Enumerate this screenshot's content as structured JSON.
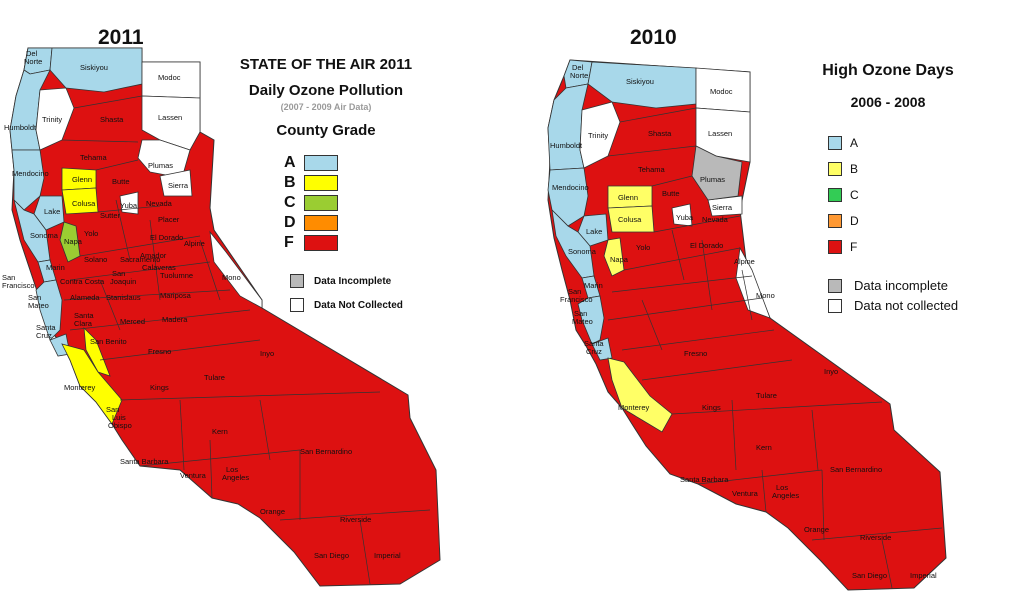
{
  "left": {
    "year": "2011",
    "title_line1": "STATE OF THE AIR 2011",
    "title_line2": "Daily Ozone Pollution",
    "subtitle": "(2007 - 2009 Air Data)",
    "legend_title": "County Grade",
    "grades": [
      {
        "grade": "A",
        "color": "#a8d8ea"
      },
      {
        "grade": "B",
        "color": "#ffff00"
      },
      {
        "grade": "C",
        "color": "#9acd32"
      },
      {
        "grade": "D",
        "color": "#ff8c00"
      },
      {
        "grade": "F",
        "color": "#dd1111"
      }
    ],
    "extra_legend": [
      {
        "label": "Data Incomplete",
        "color": "#b9b9b9"
      },
      {
        "label": "Data Not Collected",
        "color": "#ffffff"
      }
    ],
    "county_labels": [
      "Del Norte",
      "Siskiyou",
      "Modoc",
      "Humboldt",
      "Trinity",
      "Shasta",
      "Lassen",
      "Tehama",
      "Plumas",
      "Mendocino",
      "Glenn",
      "Butte",
      "Sierra",
      "Colusa",
      "Yuba",
      "Nevada",
      "Placer",
      "Lake",
      "Sutter",
      "Yolo",
      "El Dorado",
      "Sonoma",
      "Napa",
      "Alpine",
      "Solano",
      "Amador",
      "Marin",
      "San Francisco",
      "San Mateo",
      "Santa Cruz",
      "Alameda",
      "Contra Costa",
      "San Joaquin",
      "Tuolumne",
      "Mono",
      "Stanislaus",
      "Mariposa",
      "Santa Clara",
      "Merced",
      "Madera",
      "Calaveras",
      "Sacramento",
      "San Benito",
      "Fresno",
      "Inyo",
      "Monterey",
      "Kings",
      "Tulare",
      "San Luis Obispo",
      "Kern",
      "San Bernardino",
      "Santa Barbara",
      "Ventura",
      "Los Angeles",
      "Orange",
      "Riverside",
      "San Diego",
      "Imperial"
    ]
  },
  "right": {
    "year": "2010",
    "title_line1": "High Ozone Days",
    "title_line2": "2006 - 2008",
    "grades": [
      {
        "grade": "A",
        "color": "#a8d8ea"
      },
      {
        "grade": "B",
        "color": "#ffff66"
      },
      {
        "grade": "C",
        "color": "#33cc55"
      },
      {
        "grade": "D",
        "color": "#ff9933"
      },
      {
        "grade": "F",
        "color": "#dd1111"
      }
    ],
    "extra_legend": [
      {
        "label": "Data incomplete",
        "color": "#b9b9b9"
      },
      {
        "label": "Data not collected",
        "color": "#ffffff"
      }
    ]
  }
}
